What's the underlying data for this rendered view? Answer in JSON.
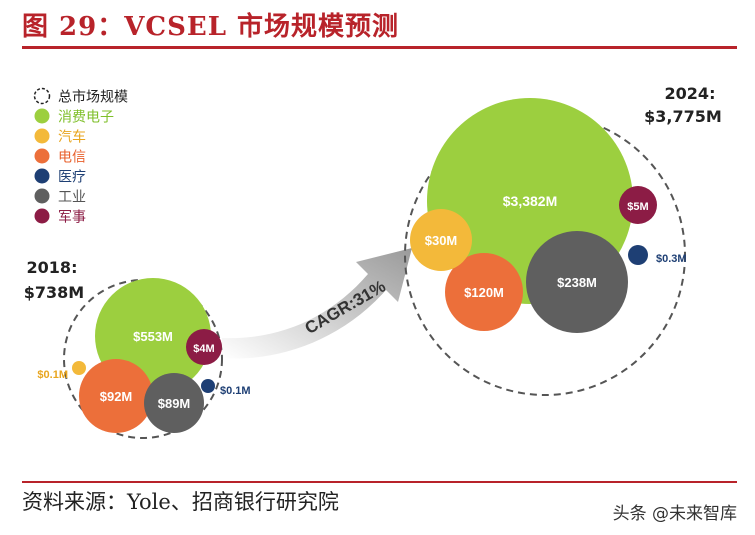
{
  "title": "图 29：VCSEL 市场规模预测",
  "source": "资料来源：Yole、招商银行研究院",
  "watermark": "头条 @未来智库",
  "cagr_label": "CAGR:31%",
  "chart_data": {
    "type": "bubble",
    "legend": [
      {
        "name": "总市场规模",
        "color": "#ffffff",
        "dashed": true,
        "text_color": "#222222"
      },
      {
        "name": "消费电子",
        "color": "#9ccf3f",
        "text_color": "#7fbf2a"
      },
      {
        "name": "汽车",
        "color": "#f3b93a",
        "text_color": "#e8a51e"
      },
      {
        "name": "电信",
        "color": "#ec6f3a",
        "text_color": "#e8602c"
      },
      {
        "name": "医疗",
        "color": "#1e3f74",
        "text_color": "#1e3f74"
      },
      {
        "name": "工业",
        "color": "#5f5f5f",
        "text_color": "#555555"
      },
      {
        "name": "军事",
        "color": "#8c1c45",
        "text_color": "#8c1c45"
      }
    ],
    "years": [
      {
        "year_label": "2018:",
        "total_label": "$738M",
        "total_value": 738,
        "segments": [
          {
            "name": "消费电子",
            "label": "$553M",
            "value": 553
          },
          {
            "name": "电信",
            "label": "$92M",
            "value": 92
          },
          {
            "name": "工业",
            "label": "$89M",
            "value": 89
          },
          {
            "name": "军事",
            "label": "$4M",
            "value": 4
          },
          {
            "name": "汽车",
            "label": "$0.1M",
            "value": 0.1
          },
          {
            "name": "医疗",
            "label": "$0.1M",
            "value": 0.1
          }
        ]
      },
      {
        "year_label": "2024:",
        "total_label": "$3,775M",
        "total_value": 3775,
        "segments": [
          {
            "name": "消费电子",
            "label": "$3,382M",
            "value": 3382
          },
          {
            "name": "工业",
            "label": "$238M",
            "value": 238
          },
          {
            "name": "电信",
            "label": "$120M",
            "value": 120
          },
          {
            "name": "汽车",
            "label": "$30M",
            "value": 30
          },
          {
            "name": "军事",
            "label": "$5M",
            "value": 5
          },
          {
            "name": "医疗",
            "label": "$0.3M",
            "value": 0.3
          }
        ]
      }
    ]
  }
}
